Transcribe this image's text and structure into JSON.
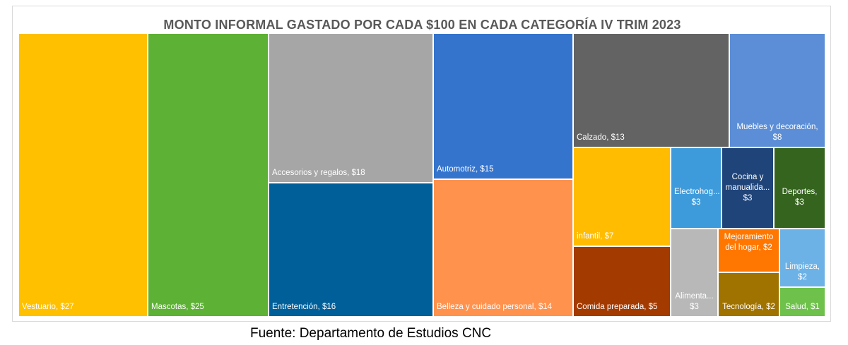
{
  "chart_data": {
    "type": "treemap",
    "title": "MONTO INFORMAL GASTADO POR CADA $100 EN CADA CATEGORÍA IV TRIM 2023",
    "items": [
      {
        "label": "Vestuario,  $27",
        "name": "Vestuario",
        "value": 27,
        "color": "#FFC000"
      },
      {
        "label": "Mascotas,  $25",
        "name": "Mascotas",
        "value": 25,
        "color": "#5DB134"
      },
      {
        "label": "Accesorios y regalos,  $18",
        "name": "Accesorios y regalos",
        "value": 18,
        "color": "#A6A6A6"
      },
      {
        "label": "Entretención,  $16",
        "name": "Entretención",
        "value": 16,
        "color": "#005F99"
      },
      {
        "label": "Automotriz,  $15",
        "name": "Automotriz",
        "value": 15,
        "color": "#3574CC"
      },
      {
        "label": "Belleza y cuidado personal,  $14",
        "name": "Belleza y cuidado personal",
        "value": 14,
        "color": "#FF924D"
      },
      {
        "label": "Calzado,  $13",
        "name": "Calzado",
        "value": 13,
        "color": "#636363"
      },
      {
        "label": "Muebles y decoración,",
        "label2": "$8",
        "name": "Muebles y decoración",
        "value": 8,
        "color": "#5B8ED6"
      },
      {
        "label": "infantil,  $7",
        "name": "infantil",
        "value": 7,
        "color": "#FFBC00"
      },
      {
        "label": "Comida preparada,  $5",
        "name": "Comida preparada",
        "value": 5,
        "color": "#A33B00"
      },
      {
        "label": "Electrohog...",
        "label2": "$3",
        "name": "Electrohogar",
        "value": 3,
        "color": "#3E9BDB"
      },
      {
        "label": "Cocina y",
        "label2": "manualida...",
        "label3": "$3",
        "name": "Cocina y manualidades",
        "value": 3,
        "color": "#1F4479"
      },
      {
        "label": "Deportes,",
        "label2": "$3",
        "name": "Deportes",
        "value": 3,
        "color": "#35641E"
      },
      {
        "label": "Alimenta...",
        "label2": "$3",
        "name": "Alimentación",
        "value": 3,
        "color": "#B8B8B8"
      },
      {
        "label": "Mejoramiento",
        "label2": "del hogar,  $2",
        "name": "Mejoramiento del hogar",
        "value": 2,
        "color": "#FF7700"
      },
      {
        "label": "Tecnología,  $2",
        "name": "Tecnología",
        "value": 2,
        "color": "#A07300"
      },
      {
        "label": "Limpieza,",
        "label2": "$2",
        "name": "Limpieza",
        "value": 2,
        "color": "#6CB2E6"
      },
      {
        "label": "Salud,  $1",
        "name": "Salud",
        "value": 1,
        "color": "#6EC14A"
      }
    ]
  },
  "source": "Fuente: Departamento de Estudios CNC"
}
